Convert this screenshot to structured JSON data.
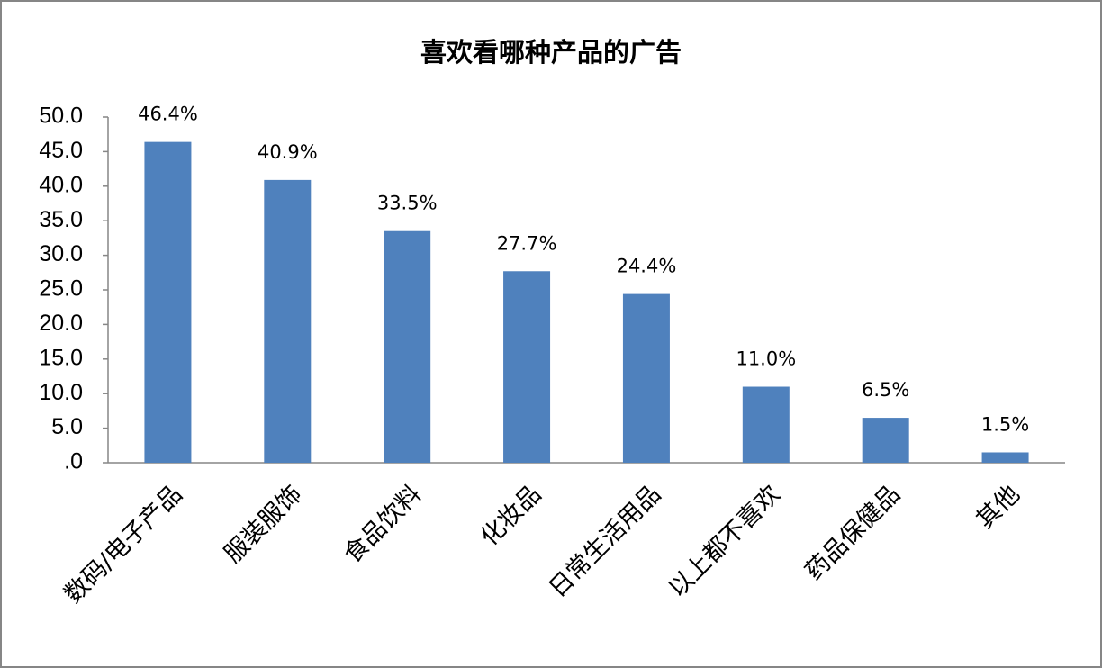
{
  "chart_data": {
    "type": "bar",
    "title": "喜欢看哪种产品的广告",
    "categories": [
      "数码/电子产品",
      "服装服饰",
      "食品饮料",
      "化妆品",
      "日常生活用品",
      "以上都不喜欢",
      "药品保健品",
      "其他"
    ],
    "values": [
      46.4,
      40.9,
      33.5,
      27.7,
      24.4,
      11.0,
      6.5,
      1.5
    ],
    "value_labels": [
      "46.4%",
      "40.9%",
      "33.5%",
      "27.7%",
      "24.4%",
      "11.0%",
      "6.5%",
      "1.5%"
    ],
    "color": "#4f81bd",
    "ylim": [
      0,
      50
    ],
    "yticks": [
      {
        "value": 0,
        "label": ".0"
      },
      {
        "value": 5,
        "label": "5.0"
      },
      {
        "value": 10,
        "label": "10.0"
      },
      {
        "value": 15,
        "label": "15.0"
      },
      {
        "value": 20,
        "label": "20.0"
      },
      {
        "value": 25,
        "label": "25.0"
      },
      {
        "value": 30,
        "label": "30.0"
      },
      {
        "value": 35,
        "label": "35.0"
      },
      {
        "value": 40,
        "label": "40.0"
      },
      {
        "value": 45,
        "label": "45.0"
      },
      {
        "value": 50,
        "label": "50.0"
      }
    ],
    "grid": false
  }
}
